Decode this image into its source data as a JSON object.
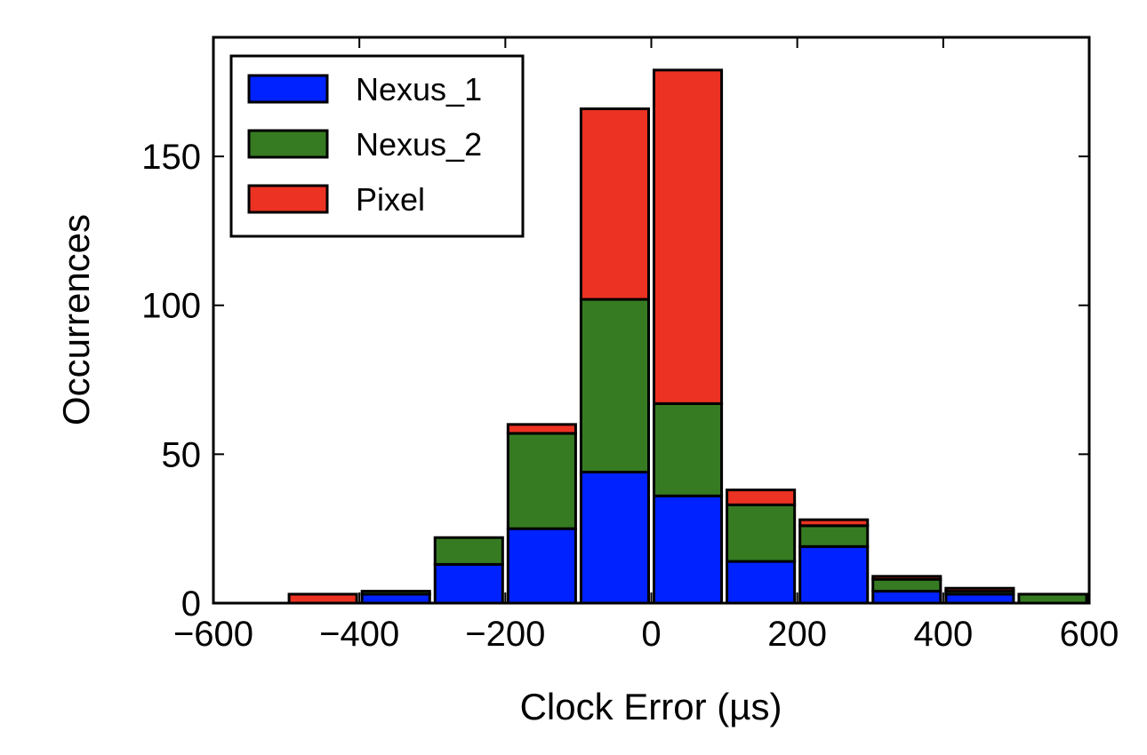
{
  "chart_data": {
    "type": "bar",
    "stacked": true,
    "xlabel": "Clock Error (µs)",
    "ylabel": "Occurrences",
    "xlim": [
      -600,
      600
    ],
    "ylim": [
      0,
      190
    ],
    "xticks": [
      -600,
      -400,
      -200,
      0,
      200,
      400,
      600
    ],
    "yticks": [
      0,
      50,
      100,
      150
    ],
    "xtick_labels": [
      "−600",
      "−400",
      "−200",
      "0",
      "200",
      "400",
      "600"
    ],
    "ytick_labels": [
      "0",
      "50",
      "100",
      "150"
    ],
    "bin_width": 100,
    "bin_starts": [
      -600,
      -500,
      -400,
      -300,
      -200,
      -100,
      0,
      100,
      200,
      300,
      400,
      500
    ],
    "grid": false,
    "legend_position": "top-left",
    "series": [
      {
        "name": "Nexus_1",
        "color": "#0022ff",
        "values": [
          0,
          0,
          3,
          13,
          25,
          44,
          36,
          14,
          19,
          4,
          3,
          0
        ]
      },
      {
        "name": "Nexus_2",
        "color": "#367b22",
        "values": [
          0,
          0,
          1,
          9,
          32,
          58,
          31,
          19,
          7,
          4,
          1,
          3
        ]
      },
      {
        "name": "Pixel",
        "color": "#ec3222",
        "values": [
          0,
          3,
          0,
          0,
          3,
          64,
          112,
          5,
          2,
          1,
          1,
          0
        ]
      }
    ]
  }
}
